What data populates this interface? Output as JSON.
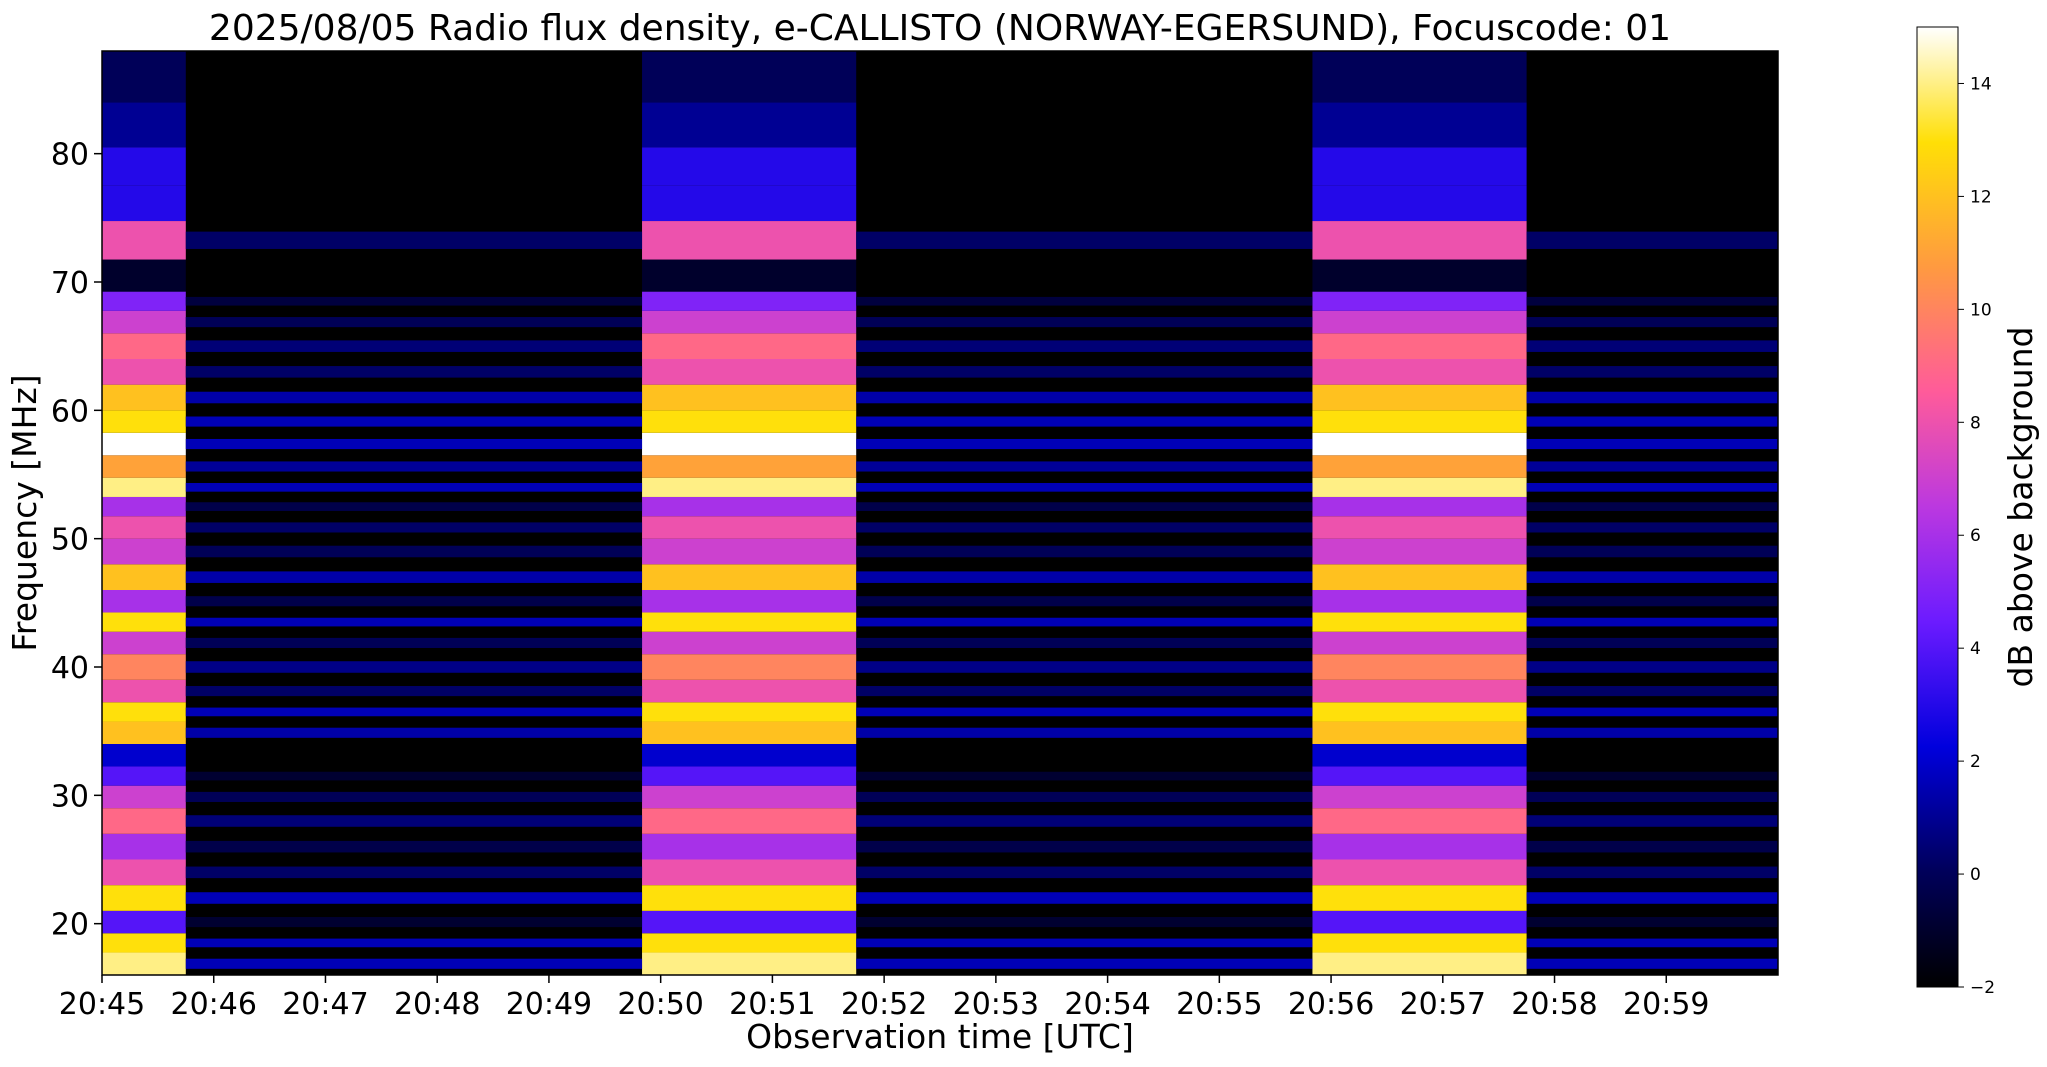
{
  "chart_data": {
    "type": "heatmap",
    "title": "2025/08/05  Radio flux density, e-CALLISTO (NORWAY-EGERSUND), Focuscode: 01",
    "xlabel": "Observation time [UTC]",
    "ylabel": "Frequency [MHz]",
    "colorbar_label": "dB above background",
    "colormap": "gnuplot2",
    "x_range": [
      "20:45",
      "21:00"
    ],
    "ylim": [
      16,
      88
    ],
    "clim": [
      -2,
      15
    ],
    "x_ticks": [
      "20:45",
      "20:46",
      "20:47",
      "20:48",
      "20:49",
      "20:50",
      "20:51",
      "20:52",
      "20:53",
      "20:54",
      "20:55",
      "20:56",
      "20:57",
      "20:58",
      "20:59"
    ],
    "y_ticks": [
      20,
      30,
      40,
      50,
      60,
      70,
      80
    ],
    "colorbar_ticks": [
      -2,
      0,
      2,
      4,
      6,
      8,
      10,
      12,
      14
    ],
    "intense_segments": [
      {
        "start": "20:45:00",
        "end": "20:45:45"
      },
      {
        "start": "20:49:50",
        "end": "20:51:45"
      },
      {
        "start": "20:55:50",
        "end": "20:57:45"
      }
    ],
    "spectral_profile_mhz_db": [
      [
        17,
        14
      ],
      [
        18.5,
        13
      ],
      [
        20,
        4
      ],
      [
        22,
        13
      ],
      [
        24,
        8
      ],
      [
        26,
        6
      ],
      [
        28,
        9
      ],
      [
        30,
        7
      ],
      [
        31.5,
        4
      ],
      [
        33,
        2
      ],
      [
        35,
        12
      ],
      [
        36.5,
        13
      ],
      [
        38,
        8
      ],
      [
        40,
        10
      ],
      [
        42,
        7
      ],
      [
        43.5,
        13
      ],
      [
        45,
        6
      ],
      [
        47,
        12
      ],
      [
        49,
        7
      ],
      [
        51,
        8
      ],
      [
        52.5,
        6
      ],
      [
        54,
        14
      ],
      [
        55.5,
        11
      ],
      [
        57.5,
        15
      ],
      [
        59,
        13
      ],
      [
        61,
        12
      ],
      [
        63,
        8
      ],
      [
        65,
        9
      ],
      [
        67,
        7
      ],
      [
        68.5,
        5
      ],
      [
        70,
        -1
      ],
      [
        73.5,
        8
      ],
      [
        76,
        3
      ],
      [
        79,
        3
      ],
      [
        82,
        1
      ],
      [
        86,
        0
      ]
    ]
  }
}
